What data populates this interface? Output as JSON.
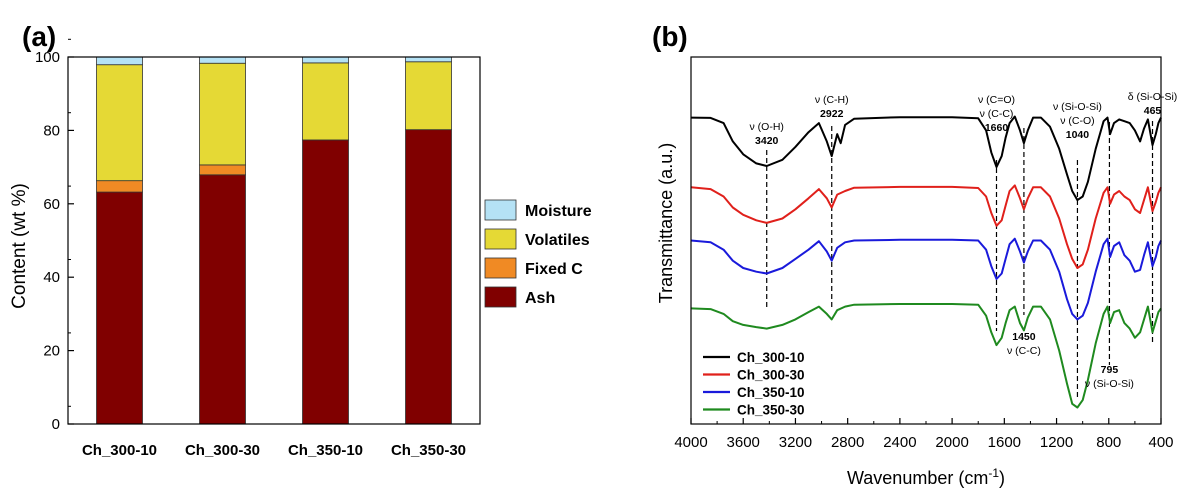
{
  "chart_data": [
    {
      "panel_label": "(a)",
      "type": "bar",
      "stacked": true,
      "categories": [
        "Ch_300-10",
        "Ch_300-30",
        "Ch_350-10",
        "Ch_350-30"
      ],
      "series": [
        {
          "name": "Ash",
          "values": [
            63.2,
            67.9,
            77.4,
            80.2
          ],
          "color": "#800000"
        },
        {
          "name": "Fixed C",
          "values": [
            3.1,
            2.7,
            0.0,
            0.0
          ],
          "color": "#f08a24"
        },
        {
          "name": "Volatiles",
          "values": [
            31.6,
            27.7,
            21.0,
            18.5
          ],
          "color": "#e5d935"
        },
        {
          "name": "Moisture",
          "values": [
            2.1,
            1.7,
            1.6,
            1.3
          ],
          "color": "#b5e2f5"
        }
      ],
      "legend_order": [
        "Moisture",
        "Volatiles",
        "Fixed C",
        "Ash"
      ],
      "ylabel": "Content (wt %)",
      "xlabel": "",
      "ylim": [
        0,
        100
      ],
      "yticks": [
        0,
        20,
        40,
        60,
        80,
        100
      ],
      "legend_position": "right"
    },
    {
      "panel_label": "(b)",
      "type": "line",
      "xlabel_main": "Wavenumber (cm",
      "xlabel_sup": "-1",
      "xlabel_end": ")",
      "ylabel": "Transmittance (a.u.)",
      "xlim": [
        4000,
        400
      ],
      "xticks": [
        4000,
        3600,
        3200,
        2800,
        2400,
        2000,
        1600,
        1200,
        800,
        400
      ],
      "legend_position": "bottom-left",
      "series": [
        {
          "name": "Ch_300-10",
          "color": "#000000",
          "baseline": 83.5,
          "points": [
            [
              4000,
              83.5
            ],
            [
              3850,
              83.4
            ],
            [
              3750,
              82.0
            ],
            [
              3680,
              77.0
            ],
            [
              3600,
              73.5
            ],
            [
              3500,
              71.0
            ],
            [
              3420,
              70.3
            ],
            [
              3300,
              72.0
            ],
            [
              3200,
              75.5
            ],
            [
              3100,
              79.5
            ],
            [
              3020,
              82.0
            ],
            [
              2960,
              77.0
            ],
            [
              2922,
              73.0
            ],
            [
              2880,
              79.0
            ],
            [
              2853,
              76.5
            ],
            [
              2820,
              81.5
            ],
            [
              2750,
              83.2
            ],
            [
              2400,
              83.6
            ],
            [
              2000,
              83.6
            ],
            [
              1800,
              83.3
            ],
            [
              1740,
              80.0
            ],
            [
              1700,
              74.0
            ],
            [
              1660,
              70.0
            ],
            [
              1620,
              73.0
            ],
            [
              1590,
              78.0
            ],
            [
              1560,
              82.0
            ],
            [
              1520,
              83.8
            ],
            [
              1480,
              80.0
            ],
            [
              1450,
              76.5
            ],
            [
              1420,
              80.0
            ],
            [
              1380,
              83.5
            ],
            [
              1320,
              83.5
            ],
            [
              1250,
              81.0
            ],
            [
              1180,
              75.0
            ],
            [
              1120,
              68.0
            ],
            [
              1080,
              63.5
            ],
            [
              1040,
              61.0
            ],
            [
              1000,
              62.0
            ],
            [
              960,
              66.0
            ],
            [
              900,
              75.0
            ],
            [
              840,
              82.5
            ],
            [
              810,
              83.5
            ],
            [
              790,
              79.0
            ],
            [
              760,
              82.0
            ],
            [
              720,
              83.0
            ],
            [
              680,
              82.5
            ],
            [
              640,
              82.0
            ],
            [
              600,
              80.0
            ],
            [
              560,
              77.0
            ],
            [
              530,
              80.5
            ],
            [
              500,
              83.0
            ],
            [
              465,
              76.0
            ],
            [
              440,
              79.0
            ],
            [
              420,
              82.0
            ],
            [
              400,
              83.5
            ]
          ]
        },
        {
          "name": "Ch_300-30",
          "color": "#e0201b",
          "baseline": 64.5,
          "points": [
            [
              4000,
              64.5
            ],
            [
              3850,
              64.0
            ],
            [
              3750,
              62.0
            ],
            [
              3680,
              59.0
            ],
            [
              3600,
              57.0
            ],
            [
              3500,
              55.5
            ],
            [
              3420,
              54.8
            ],
            [
              3300,
              56.0
            ],
            [
              3200,
              58.5
            ],
            [
              3100,
              61.5
            ],
            [
              3020,
              64.0
            ],
            [
              2960,
              61.5
            ],
            [
              2922,
              59.0
            ],
            [
              2880,
              62.5
            ],
            [
              2820,
              63.5
            ],
            [
              2750,
              64.4
            ],
            [
              2400,
              64.6
            ],
            [
              2000,
              64.6
            ],
            [
              1800,
              64.3
            ],
            [
              1740,
              62.0
            ],
            [
              1700,
              57.5
            ],
            [
              1660,
              54.0
            ],
            [
              1620,
              55.5
            ],
            [
              1590,
              59.5
            ],
            [
              1560,
              63.5
            ],
            [
              1520,
              65.0
            ],
            [
              1480,
              61.5
            ],
            [
              1450,
              58.5
            ],
            [
              1420,
              61.5
            ],
            [
              1380,
              64.5
            ],
            [
              1320,
              64.5
            ],
            [
              1250,
              62.0
            ],
            [
              1180,
              56.0
            ],
            [
              1120,
              49.0
            ],
            [
              1080,
              45.0
            ],
            [
              1040,
              42.5
            ],
            [
              1000,
              43.5
            ],
            [
              960,
              47.5
            ],
            [
              900,
              56.0
            ],
            [
              840,
              63.0
            ],
            [
              810,
              64.5
            ],
            [
              790,
              60.0
            ],
            [
              760,
              62.5
            ],
            [
              720,
              63.5
            ],
            [
              680,
              62.0
            ],
            [
              640,
              61.0
            ],
            [
              600,
              58.5
            ],
            [
              560,
              57.5
            ],
            [
              530,
              61.0
            ],
            [
              500,
              64.5
            ],
            [
              465,
              58.0
            ],
            [
              440,
              60.5
            ],
            [
              420,
              63.0
            ],
            [
              400,
              64.5
            ]
          ]
        },
        {
          "name": "Ch_350-10",
          "color": "#1a1adb",
          "baseline": 50.0,
          "points": [
            [
              4000,
              50.0
            ],
            [
              3850,
              49.5
            ],
            [
              3750,
              47.5
            ],
            [
              3680,
              44.5
            ],
            [
              3600,
              42.5
            ],
            [
              3500,
              41.5
            ],
            [
              3420,
              41.0
            ],
            [
              3300,
              42.5
            ],
            [
              3200,
              45.0
            ],
            [
              3100,
              47.5
            ],
            [
              3020,
              49.8
            ],
            [
              2960,
              47.0
            ],
            [
              2922,
              44.5
            ],
            [
              2880,
              48.0
            ],
            [
              2820,
              49.5
            ],
            [
              2750,
              50.0
            ],
            [
              2400,
              50.2
            ],
            [
              2000,
              50.2
            ],
            [
              1800,
              50.0
            ],
            [
              1740,
              47.5
            ],
            [
              1700,
              43.0
            ],
            [
              1660,
              39.5
            ],
            [
              1620,
              41.0
            ],
            [
              1590,
              45.0
            ],
            [
              1560,
              49.0
            ],
            [
              1520,
              50.5
            ],
            [
              1480,
              47.0
            ],
            [
              1450,
              44.0
            ],
            [
              1420,
              47.0
            ],
            [
              1380,
              50.0
            ],
            [
              1320,
              50.0
            ],
            [
              1250,
              47.5
            ],
            [
              1180,
              41.5
            ],
            [
              1120,
              34.0
            ],
            [
              1080,
              30.0
            ],
            [
              1040,
              28.5
            ],
            [
              1000,
              29.5
            ],
            [
              960,
              33.0
            ],
            [
              900,
              41.5
            ],
            [
              840,
              49.0
            ],
            [
              810,
              50.5
            ],
            [
              790,
              45.5
            ],
            [
              760,
              48.5
            ],
            [
              720,
              49.5
            ],
            [
              680,
              46.0
            ],
            [
              640,
              44.5
            ],
            [
              600,
              41.5
            ],
            [
              560,
              42.0
            ],
            [
              530,
              46.0
            ],
            [
              500,
              49.5
            ],
            [
              465,
              43.0
            ],
            [
              440,
              45.5
            ],
            [
              420,
              48.5
            ],
            [
              400,
              50.0
            ]
          ]
        },
        {
          "name": "Ch_350-30",
          "color": "#1f8a1f",
          "baseline": 31.5,
          "points": [
            [
              4000,
              31.5
            ],
            [
              3850,
              31.3
            ],
            [
              3750,
              30.0
            ],
            [
              3680,
              28.0
            ],
            [
              3600,
              27.0
            ],
            [
              3500,
              26.4
            ],
            [
              3420,
              26.0
            ],
            [
              3300,
              27.0
            ],
            [
              3200,
              28.5
            ],
            [
              3100,
              30.5
            ],
            [
              3020,
              32.0
            ],
            [
              2960,
              30.0
            ],
            [
              2922,
              28.5
            ],
            [
              2880,
              31.0
            ],
            [
              2820,
              32.0
            ],
            [
              2750,
              32.5
            ],
            [
              2400,
              32.7
            ],
            [
              2000,
              32.7
            ],
            [
              1800,
              32.5
            ],
            [
              1740,
              29.5
            ],
            [
              1700,
              25.0
            ],
            [
              1660,
              21.5
            ],
            [
              1620,
              23.5
            ],
            [
              1590,
              27.5
            ],
            [
              1560,
              31.0
            ],
            [
              1520,
              32.0
            ],
            [
              1480,
              27.5
            ],
            [
              1450,
              25.5
            ],
            [
              1420,
              29.0
            ],
            [
              1380,
              32.0
            ],
            [
              1320,
              32.0
            ],
            [
              1250,
              28.5
            ],
            [
              1180,
              20.0
            ],
            [
              1120,
              11.0
            ],
            [
              1080,
              5.5
            ],
            [
              1040,
              4.5
            ],
            [
              1000,
              6.5
            ],
            [
              960,
              12.0
            ],
            [
              900,
              22.0
            ],
            [
              840,
              30.0
            ],
            [
              810,
              32.0
            ],
            [
              790,
              27.5
            ],
            [
              760,
              30.5
            ],
            [
              720,
              31.0
            ],
            [
              680,
              27.5
            ],
            [
              640,
              26.0
            ],
            [
              600,
              23.5
            ],
            [
              560,
              25.0
            ],
            [
              530,
              28.5
            ],
            [
              500,
              32.0
            ],
            [
              465,
              25.0
            ],
            [
              440,
              28.0
            ],
            [
              420,
              30.5
            ],
            [
              400,
              31.5
            ]
          ]
        }
      ],
      "reference_lines": [
        3420,
        2922,
        1660,
        1450,
        1040,
        795,
        465
      ],
      "annotations": [
        {
          "id": "oh",
          "lines": [
            "ν (O-H)",
            "3420"
          ]
        },
        {
          "id": "ch",
          "lines": [
            "ν (C-H)",
            "2922"
          ]
        },
        {
          "id": "co1",
          "lines": [
            "ν (C=O)",
            "ν (C-C)",
            "1660"
          ]
        },
        {
          "id": "sio1",
          "lines": [
            "ν (Si-O-Si)",
            "ν (C-O)",
            "1040"
          ]
        },
        {
          "id": "sio2",
          "lines": [
            "δ (Si-O-Si)",
            "465"
          ]
        },
        {
          "id": "cc",
          "lines": [
            "1450",
            "ν (C-C)"
          ]
        },
        {
          "id": "sio3",
          "lines": [
            "795",
            "ν (Si-O-Si)"
          ]
        }
      ]
    }
  ]
}
